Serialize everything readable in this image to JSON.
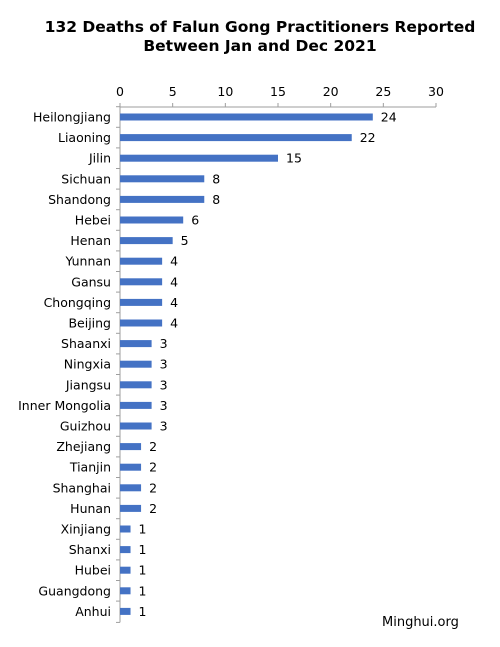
{
  "title_line1": "132 Deaths of Falun Gong Practitioners Reported",
  "title_line2": "Between Jan and Dec 2021",
  "source": "Minghui.org",
  "colors": {
    "bar": "#4472C4",
    "axis": "#9e9e9e",
    "text": "#000000"
  },
  "chart_data": {
    "type": "bar",
    "orientation": "horizontal",
    "title": "132 Deaths of Falun Gong Practitioners Reported Between Jan and Dec 2021",
    "xlim": [
      0,
      30
    ],
    "x_ticks": [
      0,
      5,
      10,
      15,
      20,
      25,
      30
    ],
    "x_axis_position": "top",
    "grid": false,
    "categories": [
      "Heilongjiang",
      "Liaoning",
      "Jilin",
      "Sichuan",
      "Shandong",
      "Hebei",
      "Henan",
      "Yunnan",
      "Gansu",
      "Chongqing",
      "Beijing",
      "Shaanxi",
      "Ningxia",
      "Jiangsu",
      "Inner Mongolia",
      "Guizhou",
      "Zhejiang",
      "Tianjin",
      "Shanghai",
      "Hunan",
      "Xinjiang",
      "Shanxi",
      "Hubei",
      "Guangdong",
      "Anhui"
    ],
    "values": [
      24,
      22,
      15,
      8,
      8,
      6,
      5,
      4,
      4,
      4,
      4,
      3,
      3,
      3,
      3,
      3,
      2,
      2,
      2,
      2,
      1,
      1,
      1,
      1,
      1
    ]
  }
}
